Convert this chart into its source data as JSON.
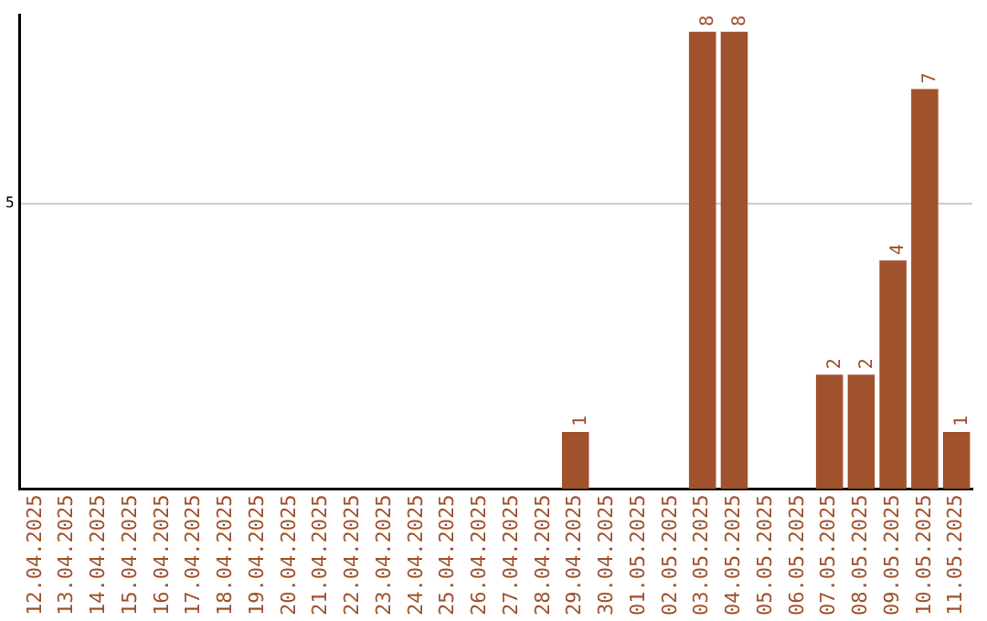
{
  "chart_data": {
    "type": "bar",
    "categories": [
      "12.04.2025",
      "13.04.2025",
      "14.04.2025",
      "15.04.2025",
      "16.04.2025",
      "17.04.2025",
      "18.04.2025",
      "19.04.2025",
      "20.04.2025",
      "21.04.2025",
      "22.04.2025",
      "23.04.2025",
      "24.04.2025",
      "25.04.2025",
      "26.04.2025",
      "27.04.2025",
      "28.04.2025",
      "29.04.2025",
      "30.04.2025",
      "01.05.2025",
      "02.05.2025",
      "03.05.2025",
      "04.05.2025",
      "05.05.2025",
      "06.05.2025",
      "07.05.2025",
      "08.05.2025",
      "09.05.2025",
      "10.05.2025",
      "11.05.2025"
    ],
    "values": [
      null,
      null,
      null,
      null,
      null,
      null,
      null,
      null,
      null,
      null,
      null,
      null,
      null,
      null,
      null,
      null,
      null,
      1,
      null,
      null,
      null,
      8,
      8,
      null,
      null,
      2,
      2,
      4,
      7,
      1
    ],
    "data_labels": true,
    "color": "#a0522d",
    "ylim": [
      0,
      8.3
    ],
    "yticks": [
      5
    ],
    "grid": "y",
    "legend": false
  }
}
